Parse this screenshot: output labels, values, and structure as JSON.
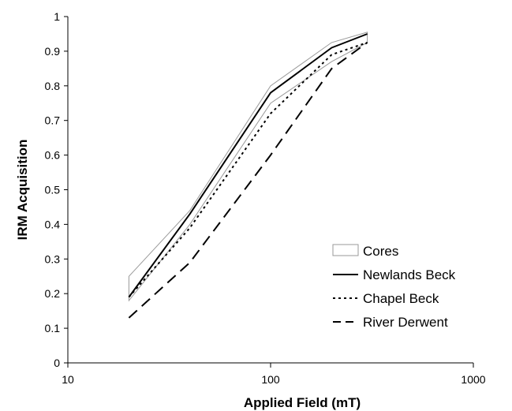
{
  "chart_data": {
    "type": "line",
    "title": "",
    "xlabel": "Applied Field (mT)",
    "ylabel": "IRM Acquisition",
    "xscale": "log",
    "xlim": [
      10,
      1000
    ],
    "ylim": [
      0,
      1
    ],
    "xticks": [
      "10",
      "100",
      "1000"
    ],
    "yticks": [
      "0",
      "0.1",
      "0.2",
      "0.3",
      "0.4",
      "0.5",
      "0.6",
      "0.7",
      "0.8",
      "0.9",
      "1"
    ],
    "grid": false,
    "legend_position": "bottom-right",
    "series": [
      {
        "name": "Cores",
        "style": "band",
        "color": "#999999",
        "x": [
          20,
          40,
          100,
          200,
          300
        ],
        "upper": [
          0.25,
          0.44,
          0.8,
          0.925,
          0.955
        ],
        "lower": [
          0.18,
          0.4,
          0.75,
          0.87,
          0.925
        ]
      },
      {
        "name": "Newlands Beck",
        "style": "solid",
        "color": "#000000",
        "x": [
          20,
          40,
          100,
          200,
          300
        ],
        "values": [
          0.19,
          0.43,
          0.78,
          0.91,
          0.95
        ]
      },
      {
        "name": "Chapel Beck",
        "style": "dotted",
        "color": "#000000",
        "x": [
          20,
          40,
          100,
          200,
          300
        ],
        "values": [
          0.19,
          0.39,
          0.72,
          0.89,
          0.925
        ]
      },
      {
        "name": "River Derwent",
        "style": "dashed",
        "color": "#000000",
        "x": [
          20,
          40,
          100,
          200,
          300
        ],
        "values": [
          0.13,
          0.29,
          0.6,
          0.85,
          0.925
        ]
      }
    ]
  }
}
